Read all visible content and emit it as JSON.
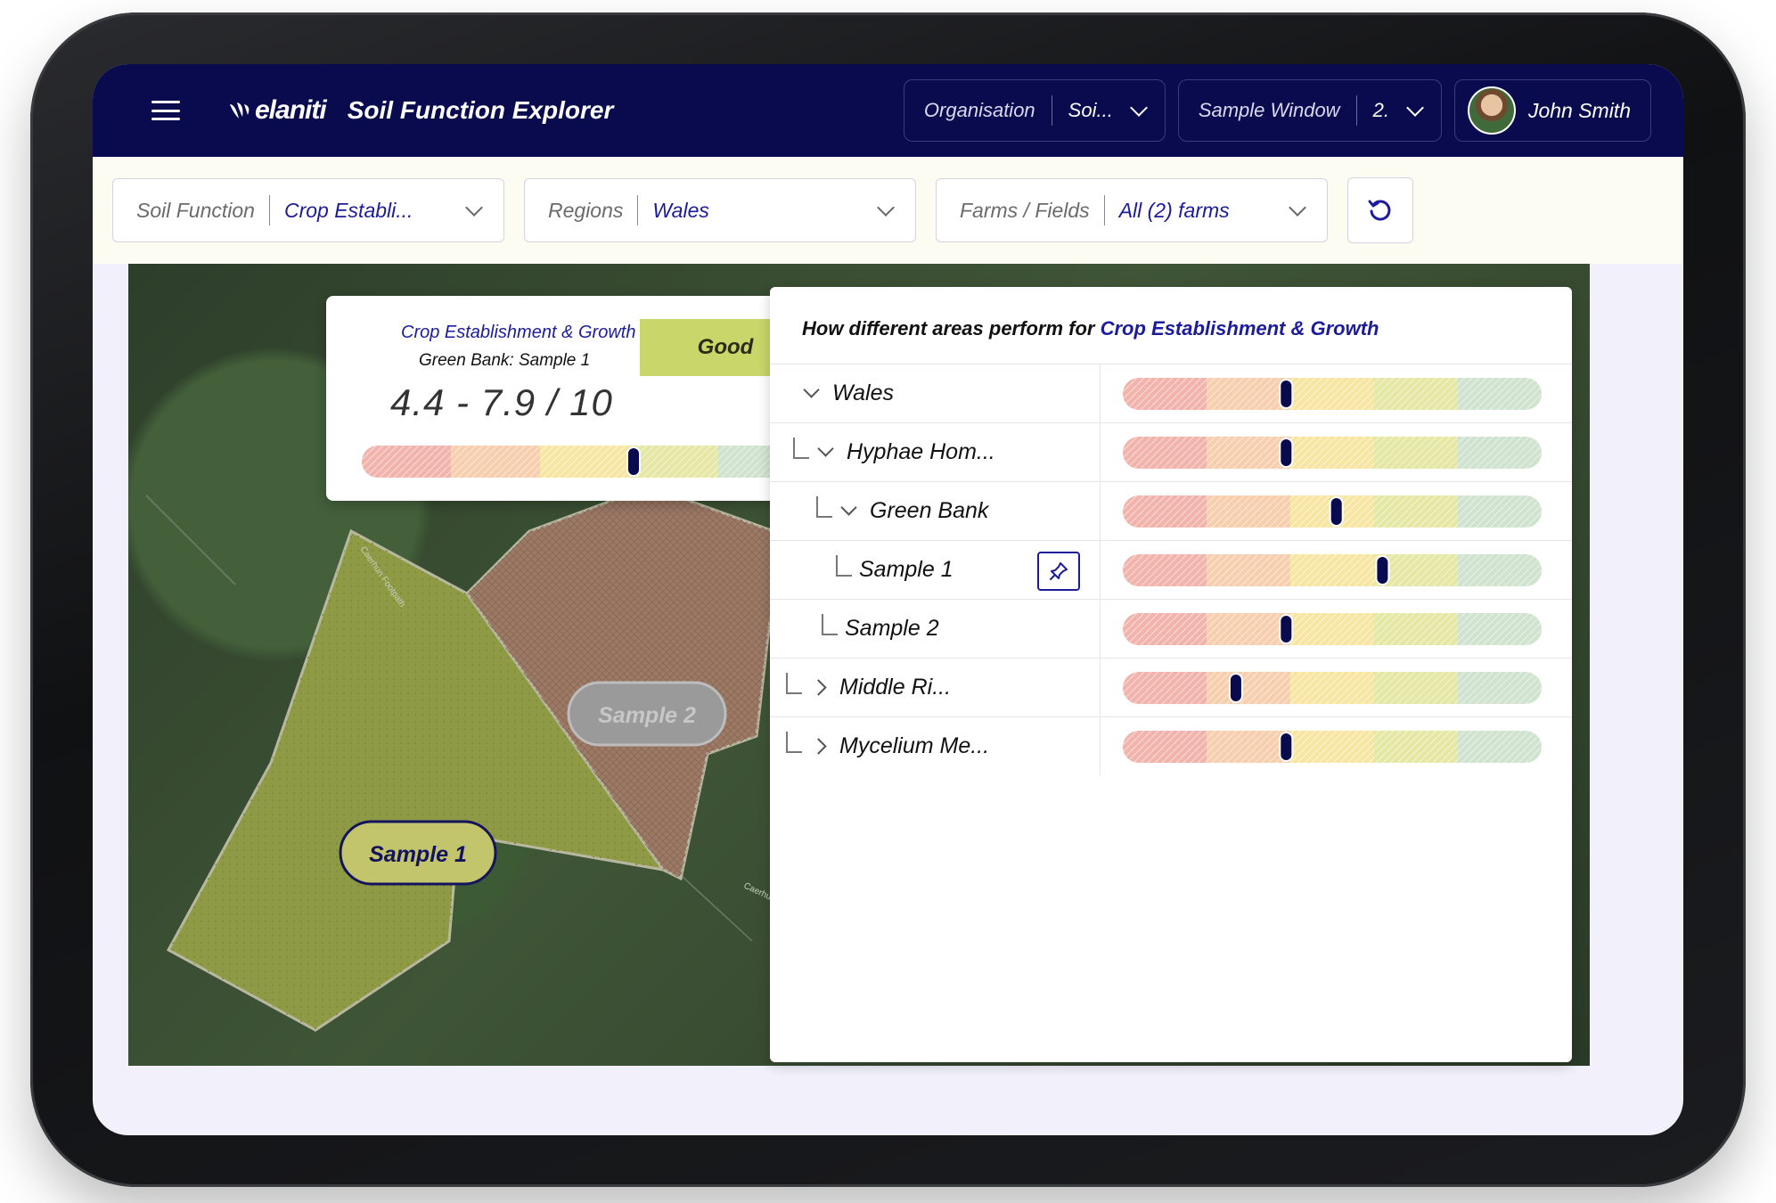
{
  "app": {
    "brand": "elaniti",
    "title": "Soil Function Explorer"
  },
  "topbar": {
    "organisation": {
      "label": "Organisation",
      "value": "Soi..."
    },
    "sample_window": {
      "label": "Sample Window",
      "value": "2."
    },
    "user": {
      "name": "John Smith"
    }
  },
  "filters": {
    "soil_function": {
      "label": "Soil Function",
      "value": "Crop Establi..."
    },
    "regions": {
      "label": "Regions",
      "value": "Wales"
    },
    "farms": {
      "label": "Farms / Fields",
      "value": "All (2) farms"
    }
  },
  "score_card": {
    "function": "Crop Establishment & Growth",
    "subtitle": "Green Bank: Sample 1",
    "range": "4.4 - 7.9 / 10",
    "rating": "Good",
    "marker": 0.61
  },
  "map": {
    "samples": [
      {
        "label": "Sample 1"
      },
      {
        "label": "Sample 2"
      }
    ],
    "road_labels": [
      "Caerhun Footpath",
      "Caerhun F..."
    ]
  },
  "tree": {
    "title_prefix": "How different areas perform for",
    "title_highlight": "Crop Establishment & Growth",
    "rows": [
      {
        "name": "Wales",
        "toggle": "down",
        "marker": 0.39
      },
      {
        "name": "Hyphae Hom...",
        "toggle": "down",
        "marker": 0.39
      },
      {
        "name": "Green Bank",
        "toggle": "down",
        "marker": 0.51
      },
      {
        "name": "Sample 1",
        "toggle": "none",
        "pinned": true,
        "marker": 0.62
      },
      {
        "name": "Sample 2",
        "toggle": "none",
        "marker": 0.39
      },
      {
        "name": "Middle Ri...",
        "toggle": "right",
        "marker": 0.27
      },
      {
        "name": "Mycelium Me...",
        "toggle": "right",
        "marker": 0.39
      }
    ]
  },
  "colors": {
    "navy": "#0a0a4e",
    "accent": "#1c1c9a",
    "band_red": "#f2b3ad",
    "band_orange": "#f8cfae",
    "band_yellow": "#f7e6a3",
    "band_lime": "#e4e8a4",
    "band_green": "#cfe3cf",
    "good_badge": "#c9d66a",
    "field_green": "#8f9a44",
    "field_brown": "#9c7a64"
  }
}
